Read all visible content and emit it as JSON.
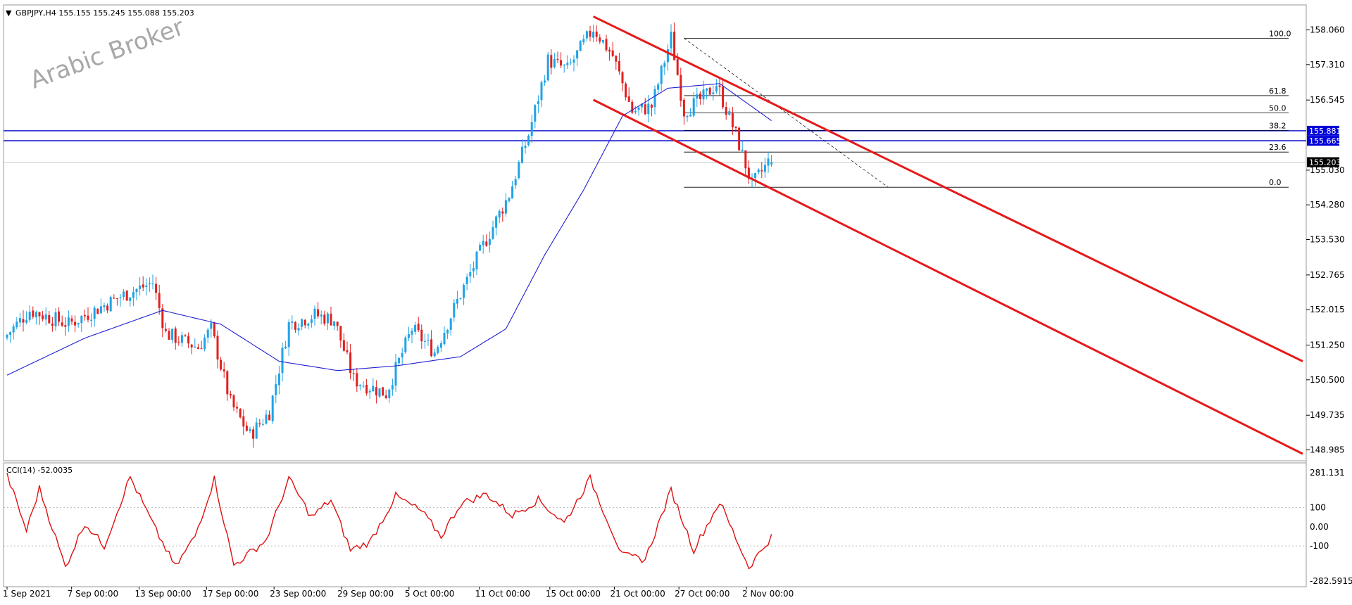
{
  "header": {
    "symbol_line": "GBPJPY,H4  155.155 155.245 155.088 155.203",
    "dropdown_icon": "triangle-down-icon"
  },
  "watermark": "Arabic Broker",
  "colors": {
    "bull": "#1fa3e6",
    "bear": "#e02020",
    "ma": "#2020d0",
    "channel": "#e51a1a",
    "cci": "#e01010",
    "hline": "#1a1ad0",
    "fib": "#000000",
    "price_box": "#000000",
    "hline_box": "#0000d8"
  },
  "price_axis": {
    "ticks": [
      "158.060",
      "157.310",
      "156.545",
      "155.030",
      "154.280",
      "153.530",
      "152.765",
      "152.015",
      "151.250",
      "150.500",
      "149.735",
      "148.985"
    ]
  },
  "current_price": "155.203",
  "horizontal_levels": [
    {
      "label": "155.881",
      "value": 155.881
    },
    {
      "label": "155.665",
      "value": 155.665
    }
  ],
  "fibonacci": {
    "levels": [
      {
        "label": "100.0",
        "value": 157.88
      },
      {
        "label": "61.8",
        "value": 156.64
      },
      {
        "label": "50.0",
        "value": 156.27
      },
      {
        "label": "38.2",
        "value": 155.89
      },
      {
        "label": "23.6",
        "value": 155.42
      },
      {
        "label": "0.0",
        "value": 154.66
      }
    ]
  },
  "cci": {
    "label": "CCI(14) -52.0035",
    "ticks": [
      "281.131",
      "100",
      "0.00",
      "-100",
      "-282.5915"
    ]
  },
  "time_axis": {
    "labels": [
      "1 Sep 2021",
      "7 Sep 00:00",
      "13 Sep 00:00",
      "17 Sep 00:00",
      "23 Sep 00:00",
      "29 Sep 00:00",
      "5 Oct 00:00",
      "11 Oct 00:00",
      "15 Oct 00:00",
      "21 Oct 00:00",
      "27 Oct 00:00",
      "2 Nov 00:00"
    ]
  },
  "chart_data": {
    "type": "candlestick",
    "symbol": "GBPJPY",
    "timeframe": "H4",
    "ohlc_last": {
      "open": 155.155,
      "high": 155.245,
      "low": 155.088,
      "close": 155.203
    },
    "price_range": [
      148.75,
      158.6
    ],
    "path_anchors": [
      {
        "bar": 0,
        "price": 151.4
      },
      {
        "bar": 8,
        "price": 152.0
      },
      {
        "bar": 20,
        "price": 151.7
      },
      {
        "bar": 36,
        "price": 152.3
      },
      {
        "bar": 46,
        "price": 152.6
      },
      {
        "bar": 50,
        "price": 151.5
      },
      {
        "bar": 60,
        "price": 151.2
      },
      {
        "bar": 64,
        "price": 151.6
      },
      {
        "bar": 70,
        "price": 150.0
      },
      {
        "bar": 76,
        "price": 149.3
      },
      {
        "bar": 82,
        "price": 149.8
      },
      {
        "bar": 88,
        "price": 151.7
      },
      {
        "bar": 96,
        "price": 151.9
      },
      {
        "bar": 102,
        "price": 151.8
      },
      {
        "bar": 108,
        "price": 150.5
      },
      {
        "bar": 118,
        "price": 150.2
      },
      {
        "bar": 126,
        "price": 151.6
      },
      {
        "bar": 133,
        "price": 151.1
      },
      {
        "bar": 140,
        "price": 152.2
      },
      {
        "bar": 148,
        "price": 153.4
      },
      {
        "bar": 156,
        "price": 154.5
      },
      {
        "bar": 162,
        "price": 155.8
      },
      {
        "bar": 168,
        "price": 157.4
      },
      {
        "bar": 174,
        "price": 157.2
      },
      {
        "bar": 182,
        "price": 158.1
      },
      {
        "bar": 188,
        "price": 157.5
      },
      {
        "bar": 194,
        "price": 156.3
      },
      {
        "bar": 200,
        "price": 156.4
      },
      {
        "bar": 206,
        "price": 157.9
      },
      {
        "bar": 210,
        "price": 156.3
      },
      {
        "bar": 216,
        "price": 156.6
      },
      {
        "bar": 220,
        "price": 156.9
      },
      {
        "bar": 226,
        "price": 155.8
      },
      {
        "bar": 231,
        "price": 154.7
      },
      {
        "bar": 236,
        "price": 155.2
      }
    ],
    "moving_average_anchors": [
      {
        "bar": 0,
        "price": 150.6
      },
      {
        "bar": 24,
        "price": 151.4
      },
      {
        "bar": 48,
        "price": 152.0
      },
      {
        "bar": 66,
        "price": 151.7
      },
      {
        "bar": 84,
        "price": 150.9
      },
      {
        "bar": 102,
        "price": 150.7
      },
      {
        "bar": 120,
        "price": 150.8
      },
      {
        "bar": 140,
        "price": 151.0
      },
      {
        "bar": 154,
        "price": 151.6
      },
      {
        "bar": 166,
        "price": 153.2
      },
      {
        "bar": 178,
        "price": 154.6
      },
      {
        "bar": 190,
        "price": 156.2
      },
      {
        "bar": 204,
        "price": 156.8
      },
      {
        "bar": 220,
        "price": 156.9
      },
      {
        "bar": 236,
        "price": 156.1
      }
    ],
    "channel_lines": [
      {
        "from": {
          "bar": 181,
          "price": 158.35
        },
        "to": {
          "bar": 400,
          "price": 150.9
        }
      },
      {
        "from": {
          "bar": 181,
          "price": 156.55
        },
        "to": {
          "bar": 400,
          "price": 148.9
        }
      }
    ],
    "cci_anchors": [
      {
        "bar": 0,
        "value": 270
      },
      {
        "bar": 6,
        "value": -20
      },
      {
        "bar": 10,
        "value": 200
      },
      {
        "bar": 18,
        "value": -210
      },
      {
        "bar": 24,
        "value": 20
      },
      {
        "bar": 30,
        "value": -100
      },
      {
        "bar": 38,
        "value": 260
      },
      {
        "bar": 46,
        "value": -20
      },
      {
        "bar": 52,
        "value": -210
      },
      {
        "bar": 58,
        "value": -50
      },
      {
        "bar": 64,
        "value": 250
      },
      {
        "bar": 70,
        "value": -200
      },
      {
        "bar": 80,
        "value": -70
      },
      {
        "bar": 87,
        "value": 250
      },
      {
        "bar": 94,
        "value": 50
      },
      {
        "bar": 100,
        "value": 140
      },
      {
        "bar": 106,
        "value": -120
      },
      {
        "bar": 112,
        "value": -80
      },
      {
        "bar": 120,
        "value": 160
      },
      {
        "bar": 128,
        "value": 80
      },
      {
        "bar": 134,
        "value": -50
      },
      {
        "bar": 140,
        "value": 120
      },
      {
        "bar": 148,
        "value": 170
      },
      {
        "bar": 156,
        "value": 60
      },
      {
        "bar": 164,
        "value": 140
      },
      {
        "bar": 172,
        "value": 20
      },
      {
        "bar": 180,
        "value": 250
      },
      {
        "bar": 190,
        "value": -150
      },
      {
        "bar": 197,
        "value": -170
      },
      {
        "bar": 205,
        "value": 190
      },
      {
        "bar": 212,
        "value": -120
      },
      {
        "bar": 220,
        "value": 130
      },
      {
        "bar": 229,
        "value": -210
      },
      {
        "bar": 236,
        "value": -52
      }
    ],
    "cci_range": [
      -282.5915,
      281.131
    ],
    "bar_count": 237
  }
}
